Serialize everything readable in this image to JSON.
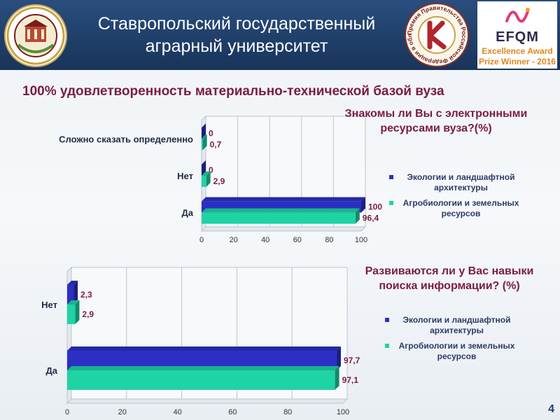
{
  "header": {
    "title_line1": "Ставропольский государственный",
    "title_line2": "аграрный университет",
    "logo_icon": "university-emblem-icon",
    "quality_icon": "quality-award-seal-icon",
    "quality_seal_text": "Премия Правительства Российской Федерации в области качества",
    "efqm": {
      "name": "EFQM",
      "line1": "Excellence Award",
      "line2": "Prize Winner - 2016"
    }
  },
  "headline": "100% удовлетворенность материально-технической базой вуза",
  "colors": {
    "series1": "#2b2fc4",
    "series2": "#1ed3a5",
    "title": "#7a1c44",
    "header_bg": "#1f3e68"
  },
  "chart_data": [
    {
      "type": "bar",
      "orientation": "horizontal",
      "title_lines": [
        "Знакомы ли Вы с электронными",
        "ресурсами вуза?(%)"
      ],
      "categories": [
        "Сложно сказать определенно",
        "Нет",
        "Да"
      ],
      "series": [
        {
          "name": "Экологии и ландшафтной архитектуры",
          "legend_lines": [
            "Экологии и ландшафтной",
            "архитектуры"
          ],
          "values": [
            0,
            0,
            100
          ],
          "labels": [
            "0",
            "0",
            "100"
          ],
          "color": "#2b2fc4"
        },
        {
          "name": "Агробиологии и земельных ресурсов",
          "legend_lines": [
            "Агробиологии и земельных",
            "ресурсов"
          ],
          "values": [
            0.7,
            2.9,
            96.4
          ],
          "labels": [
            "0,7",
            "2,9",
            "96,4"
          ],
          "color": "#1ed3a5"
        }
      ],
      "xlim": [
        0,
        100
      ],
      "xticks": [
        "0",
        "20",
        "40",
        "60",
        "80",
        "100"
      ],
      "legend": "right",
      "grid": true
    },
    {
      "type": "bar",
      "orientation": "horizontal",
      "title_lines": [
        "Развиваются ли у Вас навыки",
        "поиска информации? (%)"
      ],
      "categories": [
        "Нет",
        "Да"
      ],
      "series": [
        {
          "name": "Экологии и ландшафтной архитектуры",
          "legend_lines": [
            "Экологии и ландшафтной",
            "архитектуры"
          ],
          "values": [
            2.3,
            97.7
          ],
          "labels": [
            "2,3",
            "97,7"
          ],
          "color": "#2b2fc4"
        },
        {
          "name": "Агробиологии и земельных ресурсов",
          "legend_lines": [
            "Агробиологии и земельных",
            "ресурсов"
          ],
          "values": [
            2.9,
            97.1
          ],
          "labels": [
            "2,9",
            "97,1"
          ],
          "color": "#1ed3a5"
        }
      ],
      "xlim": [
        0,
        100
      ],
      "xticks": [
        "0",
        "20",
        "40",
        "60",
        "80",
        "100"
      ],
      "legend": "right",
      "grid": true
    }
  ],
  "page_number": "4"
}
